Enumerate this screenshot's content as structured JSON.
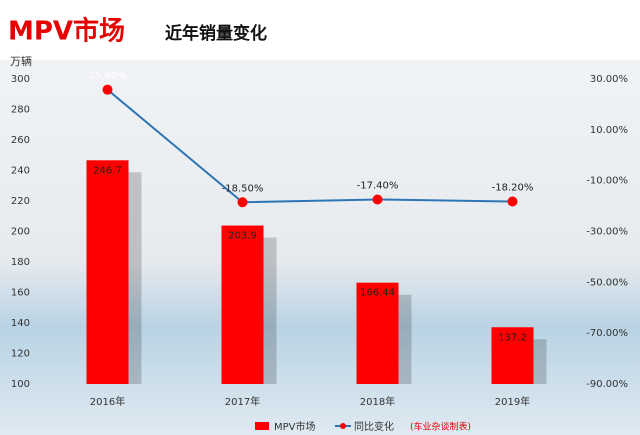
{
  "chart_data": {
    "type": "bar-line",
    "title": "MPV市场",
    "subtitle": "近年销量变化",
    "y_label": "万辆",
    "note": "(车业杂谈制表)",
    "categories": [
      "2016年",
      "2017年",
      "2018年",
      "2019年"
    ],
    "series": [
      {
        "name": "MPV市场",
        "type": "bar",
        "color": "#ff0000",
        "values": [
          246.7,
          203.9,
          166.44,
          137.2
        ]
      },
      {
        "name": "同比变化",
        "type": "line",
        "axis": "y2",
        "color": "#2e75b6",
        "marker_color": "#ff0000",
        "values": [
          25.8,
          -18.5,
          -17.4,
          -18.2
        ],
        "value_labels": [
          "25.80%",
          "-18.50%",
          "-17.40%",
          "-18.20%"
        ]
      }
    ],
    "ylim": [
      100,
      300
    ],
    "yticks": [
      100,
      120,
      140,
      160,
      180,
      200,
      220,
      240,
      260,
      280,
      300
    ],
    "y2lim": [
      -90,
      30
    ],
    "y2ticks": [
      {
        "value": 30,
        "label": "30.00%"
      },
      {
        "value": 10,
        "label": "10.00%"
      },
      {
        "value": -10,
        "label": "-10.00%"
      },
      {
        "value": -30,
        "label": "-30.00%"
      },
      {
        "value": -50,
        "label": "-50.00%"
      },
      {
        "value": -70,
        "label": "-70.00%"
      },
      {
        "value": -90,
        "label": "-90.00%"
      }
    ]
  }
}
